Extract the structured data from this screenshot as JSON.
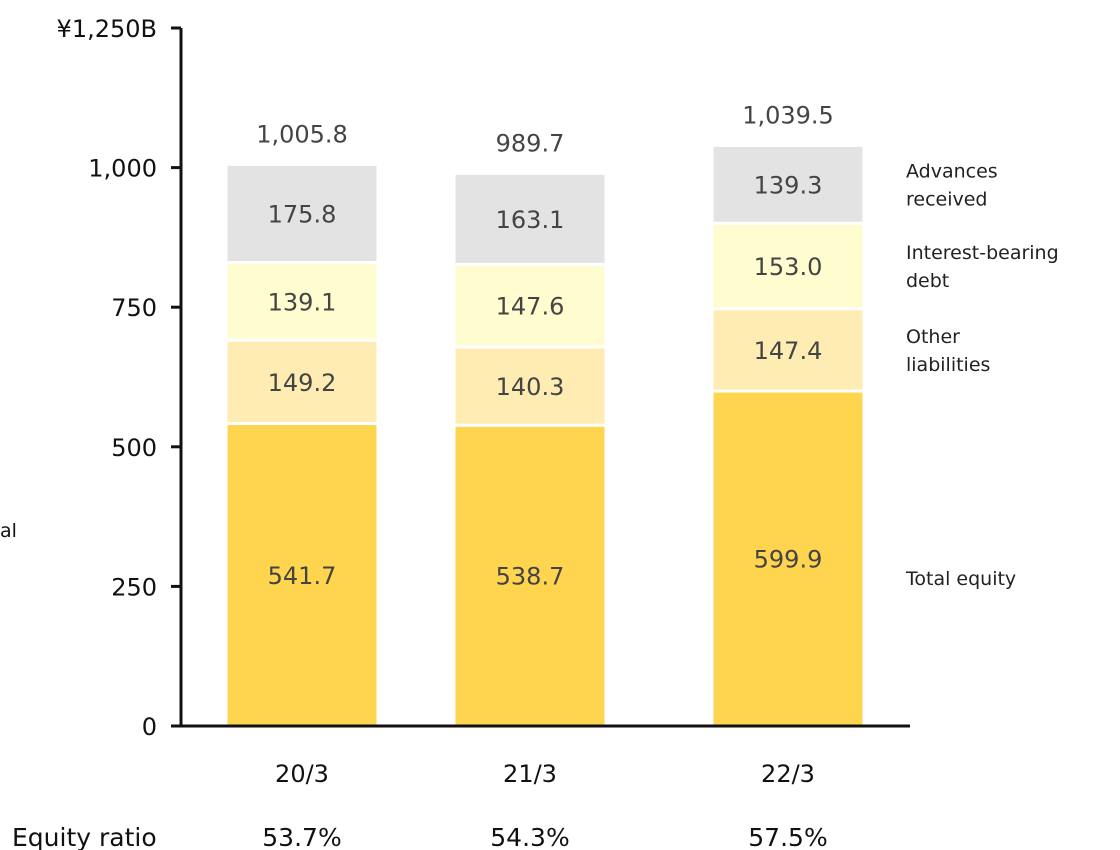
{
  "chart_data": {
    "type": "bar",
    "stacked": true,
    "categories": [
      "20/3",
      "21/3",
      "22/3"
    ],
    "series": [
      {
        "name": "Total equity",
        "values": [
          541.7,
          538.7,
          599.9
        ],
        "color": "#FFD54F"
      },
      {
        "name": "Other liabilities",
        "values": [
          149.2,
          140.3,
          147.4
        ],
        "color": "#FFECB3"
      },
      {
        "name": "Interest-bearing debt",
        "values": [
          139.1,
          147.6,
          153.0
        ],
        "color": "#FFFDD0"
      },
      {
        "name": "Advances received",
        "values": [
          175.8,
          163.1,
          139.3
        ],
        "color": "#E3E3E3"
      }
    ],
    "totals": [
      "1,005.8",
      "989.7",
      "1,039.5"
    ],
    "value_labels": [
      [
        "541.7",
        "538.7",
        "599.9"
      ],
      [
        "149.2",
        "140.3",
        "147.4"
      ],
      [
        "139.1",
        "147.6",
        "153.0"
      ],
      [
        "175.8",
        "163.1",
        "139.3"
      ]
    ],
    "legend_lines": [
      [
        "Total equity"
      ],
      [
        "Other",
        "liabilities"
      ],
      [
        "Interest-bearing",
        "debt"
      ],
      [
        "Advances",
        "received"
      ]
    ],
    "yticks": [
      {
        "value": 0,
        "label": "0"
      },
      {
        "value": 250,
        "label": "250"
      },
      {
        "value": 500,
        "label": "500"
      },
      {
        "value": 750,
        "label": "750"
      },
      {
        "value": 1000,
        "label": "1,000"
      },
      {
        "value": 1250,
        "label": "¥1,250B"
      }
    ],
    "ylim": [
      0,
      1250
    ],
    "legend_position": "right",
    "grid": false,
    "cut_off_text": "al"
  },
  "equity_ratio": {
    "label": "Equity ratio",
    "values": [
      "53.7%",
      "54.3%",
      "57.5%"
    ]
  }
}
